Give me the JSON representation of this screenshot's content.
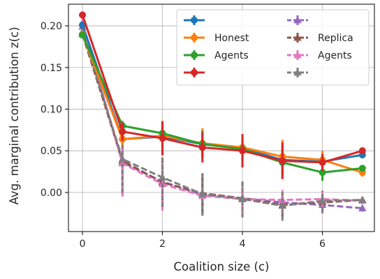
{
  "chart_data": {
    "type": "line",
    "xlabel": "Coalition size (c)",
    "ylabel": "Avg. marginal contribution z(c)",
    "xlim": [
      -0.35,
      7.3
    ],
    "ylim": [
      -0.047,
      0.226
    ],
    "xticks": [
      0,
      2,
      4,
      6
    ],
    "yticks": [
      0.0,
      0.05,
      0.1,
      0.15,
      0.2
    ],
    "ytick_labels": [
      "0.00",
      "0.05",
      "0.10",
      "0.15",
      "0.20"
    ],
    "grid": true,
    "legend": {
      "placement": "top-right",
      "columns": 2,
      "entries": [
        {
          "label": "",
          "series": 0
        },
        {
          "label": "Honest",
          "series": 1
        },
        {
          "label": "Agents",
          "series": 2
        },
        {
          "label": "",
          "series": 3
        },
        {
          "label": "",
          "series": 4
        },
        {
          "label": "Replica",
          "series": 5
        },
        {
          "label": "Agents",
          "series": 6
        },
        {
          "label": "",
          "series": 7
        }
      ]
    },
    "x": [
      0,
      1,
      2,
      3,
      4,
      5,
      6,
      7
    ],
    "series": [
      {
        "color": "#1f77b4",
        "style": "solid",
        "marker": "circle",
        "values": [
          0.201,
          0.064,
          0.067,
          0.058,
          0.053,
          0.039,
          0.037,
          0.045
        ],
        "errors": [
          0.004,
          0.006,
          0.014,
          0.016,
          0.014,
          0.018,
          0.009,
          0.004
        ]
      },
      {
        "color": "#ff7f0e",
        "style": "solid",
        "marker": "circle",
        "values": [
          0.19,
          0.064,
          0.068,
          0.059,
          0.054,
          0.043,
          0.039,
          0.024
        ],
        "errors": [
          0.004,
          0.007,
          0.018,
          0.018,
          0.016,
          0.02,
          0.011,
          0.005
        ]
      },
      {
        "color": "#2ca02c",
        "style": "solid",
        "marker": "circle",
        "values": [
          0.189,
          0.08,
          0.071,
          0.058,
          0.052,
          0.036,
          0.024,
          0.029
        ],
        "errors": [
          0.004,
          0.006,
          0.012,
          0.016,
          0.014,
          0.018,
          0.01,
          0.004
        ]
      },
      {
        "color": "#d62728",
        "style": "solid",
        "marker": "circle",
        "values": [
          0.213,
          0.073,
          0.065,
          0.054,
          0.05,
          0.038,
          0.036,
          0.05
        ],
        "errors": [
          0.004,
          0.011,
          0.02,
          0.018,
          0.02,
          0.022,
          0.01,
          0.004
        ]
      },
      {
        "color": "#9467bd",
        "style": "dashed",
        "marker": "triangle",
        "values": [
          0.199,
          0.036,
          0.013,
          -0.003,
          -0.007,
          -0.012,
          -0.015,
          -0.019
        ],
        "errors": [
          0.005,
          0.038,
          0.03,
          0.022,
          0.02,
          0.012,
          0.01,
          0.004
        ]
      },
      {
        "color": "#8c564b",
        "style": "dashed",
        "marker": "triangle",
        "values": [
          0.19,
          0.038,
          0.012,
          -0.001,
          -0.007,
          -0.015,
          -0.012,
          -0.009
        ],
        "errors": [
          0.005,
          0.04,
          0.03,
          0.024,
          0.02,
          0.014,
          0.01,
          0.004
        ]
      },
      {
        "color": "#e377c2",
        "style": "dashed",
        "marker": "triangle",
        "values": [
          0.204,
          0.035,
          0.01,
          -0.004,
          -0.008,
          -0.009,
          -0.008,
          -0.01
        ],
        "errors": [
          0.005,
          0.04,
          0.032,
          0.024,
          0.02,
          0.012,
          0.01,
          0.004
        ]
      },
      {
        "color": "#7f7f7f",
        "style": "dashed",
        "marker": "triangle",
        "values": [
          0.193,
          0.04,
          0.018,
          -0.002,
          -0.008,
          -0.016,
          -0.01,
          -0.009
        ],
        "errors": [
          0.005,
          0.04,
          0.034,
          0.026,
          0.022,
          0.018,
          0.012,
          0.004
        ]
      }
    ]
  }
}
